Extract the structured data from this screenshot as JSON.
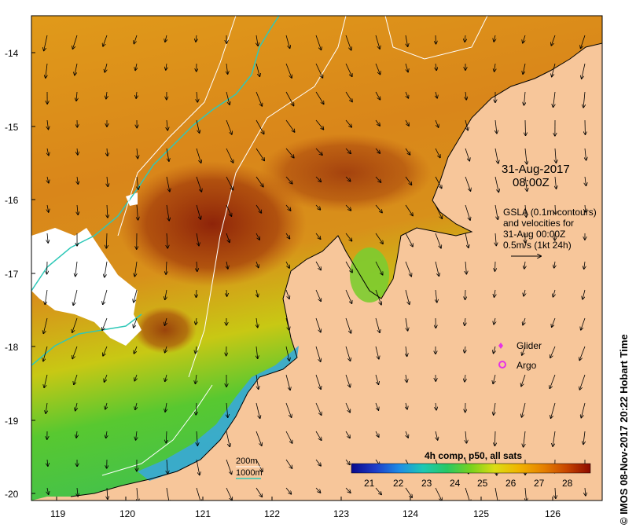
{
  "map": {
    "timestamp_line1": "31-Aug-2017",
    "timestamp_line2": "08:00Z",
    "gsla_note": [
      "GSLA (0.1m contours)",
      "and velocities for",
      "31-Aug 00:00Z",
      "0.5m/s (1kt 24h)"
    ],
    "legend": {
      "glider": "Glider",
      "argo": "Argo"
    },
    "isobaths": {
      "shallow": "200m",
      "deep": "1000m"
    },
    "colorbar": {
      "title": "4h comp, p50, all sats",
      "ticks": [
        "21",
        "22",
        "23",
        "24",
        "25",
        "26",
        "27",
        "28"
      ],
      "colors": [
        "#0a0a8c",
        "#1e3cc8",
        "#1e78e6",
        "#1eb4c8",
        "#28c87a",
        "#3cc83c",
        "#8cd21e",
        "#d2dc14",
        "#f0c80a",
        "#f0a000",
        "#e68200",
        "#d25a00",
        "#b43200",
        "#8c0a00"
      ]
    },
    "x_ticks": [
      "119",
      "120",
      "121",
      "122",
      "123",
      "124",
      "125",
      "126"
    ],
    "y_ticks": [
      "-14",
      "-15",
      "-16",
      "-17",
      "-18",
      "-19",
      "-20"
    ],
    "credit": "© IMOS 08-Nov-2017 20:22 Hobart Time",
    "colors": {
      "land": "#f7c69a",
      "sst_warm": "#d98a16",
      "sst_hot": "#8c1e0a",
      "sst_cool": "#3cc83c",
      "sst_cold": "#1e78e6",
      "contour_1000m": "#2fc8b8",
      "contour_200m": "#ffffff",
      "glider": "#e632e6",
      "argo": "#e632e6"
    }
  }
}
